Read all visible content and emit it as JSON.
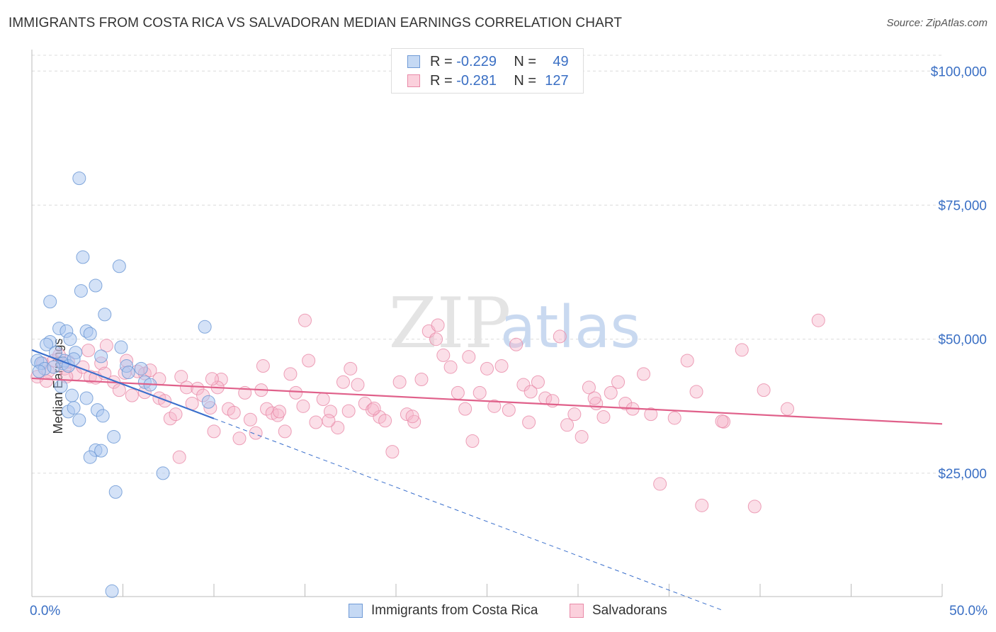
{
  "header": {
    "title": "IMMIGRANTS FROM COSTA RICA VS SALVADORAN MEDIAN EARNINGS CORRELATION CHART",
    "source": "Source: ZipAtlas.com"
  },
  "watermark": {
    "zip": "ZIP",
    "atlas": "atlas"
  },
  "colors": {
    "blue_fill": "#a9c6ef",
    "blue_stroke": "#6f9ad6",
    "blue_line": "#3a6fcc",
    "pink_fill": "#f6b8cb",
    "pink_stroke": "#e98aa8",
    "pink_line": "#e0608a",
    "axis_text": "#3a6fc4"
  },
  "legend": {
    "rows": [
      {
        "r_label": "R =",
        "r_value": "-0.229",
        "n_label": "N =",
        "n_value": "49"
      },
      {
        "r_label": "R =",
        "r_value": "-0.281",
        "n_label": "N =",
        "n_value": "127"
      }
    ]
  },
  "bottom_legend": {
    "series1": "Immigrants from Costa Rica",
    "series2": "Salvadorans"
  },
  "chart_data": {
    "type": "scatter",
    "title": "IMMIGRANTS FROM COSTA RICA VS SALVADORAN MEDIAN EARNINGS CORRELATION CHART",
    "xlabel": "",
    "ylabel": "Median Earnings",
    "xlim": [
      0,
      50
    ],
    "ylim": [
      2000,
      104000
    ],
    "x_tick_labels": [
      "0.0%",
      "50.0%"
    ],
    "y_ticks": [
      25000,
      50000,
      75000,
      100000
    ],
    "y_tick_labels": [
      "$25,000",
      "$50,000",
      "$75,000",
      "$100,000"
    ],
    "grid": true,
    "series": [
      {
        "name": "Immigrants from Costa Rica",
        "r": -0.229,
        "n": 49,
        "trend": {
          "x0": 0.0,
          "y0": 48000,
          "x1": 10.0,
          "y1": 35200,
          "dashed_to_x": 38.0
        },
        "points": [
          [
            0.3,
            46000
          ],
          [
            0.5,
            45500
          ],
          [
            0.7,
            44500
          ],
          [
            0.4,
            44000
          ],
          [
            1.0,
            49500
          ],
          [
            0.8,
            49000
          ],
          [
            1.3,
            47500
          ],
          [
            1.8,
            46000
          ],
          [
            2.4,
            47500
          ],
          [
            1.7,
            45500
          ],
          [
            2.0,
            45000
          ],
          [
            1.2,
            44800
          ],
          [
            1.5,
            52000
          ],
          [
            1.9,
            51500
          ],
          [
            2.1,
            50000
          ],
          [
            2.3,
            46300
          ],
          [
            3.0,
            51500
          ],
          [
            3.2,
            51000
          ],
          [
            2.7,
            59000
          ],
          [
            1.0,
            57000
          ],
          [
            3.5,
            60000
          ],
          [
            2.8,
            65300
          ],
          [
            4.8,
            63600
          ],
          [
            2.6,
            80000
          ],
          [
            4.0,
            54600
          ],
          [
            4.9,
            48500
          ],
          [
            5.2,
            45000
          ],
          [
            5.3,
            43800
          ],
          [
            3.8,
            46800
          ],
          [
            1.6,
            41200
          ],
          [
            2.2,
            39500
          ],
          [
            3.0,
            39000
          ],
          [
            2.0,
            36500
          ],
          [
            2.3,
            37200
          ],
          [
            3.6,
            36800
          ],
          [
            3.9,
            35700
          ],
          [
            2.6,
            34900
          ],
          [
            4.5,
            31800
          ],
          [
            3.5,
            29300
          ],
          [
            3.8,
            29200
          ],
          [
            3.2,
            28000
          ],
          [
            7.2,
            25000
          ],
          [
            4.6,
            21500
          ],
          [
            6.0,
            44500
          ],
          [
            6.2,
            42000
          ],
          [
            9.5,
            52300
          ],
          [
            9.7,
            38300
          ],
          [
            6.5,
            41500
          ],
          [
            4.4,
            3000
          ]
        ]
      },
      {
        "name": "Salvadorans",
        "r": -0.281,
        "n": 127,
        "trend": {
          "x0": 0.0,
          "y0": 42700,
          "x1": 50.0,
          "y1": 34200
        },
        "points": [
          [
            0.3,
            43000
          ],
          [
            0.6,
            45500
          ],
          [
            0.9,
            44000
          ],
          [
            1.2,
            46000
          ],
          [
            1.5,
            47000
          ],
          [
            1.8,
            44500
          ],
          [
            2.0,
            45800
          ],
          [
            2.4,
            43500
          ],
          [
            2.8,
            44800
          ],
          [
            3.2,
            43000
          ],
          [
            3.5,
            42800
          ],
          [
            3.8,
            45500
          ],
          [
            4.0,
            43600
          ],
          [
            4.5,
            42000
          ],
          [
            4.8,
            40500
          ],
          [
            5.2,
            46000
          ],
          [
            5.5,
            39500
          ],
          [
            5.8,
            44000
          ],
          [
            6.2,
            43600
          ],
          [
            6.5,
            44200
          ],
          [
            7.0,
            39000
          ],
          [
            7.3,
            38500
          ],
          [
            7.6,
            35200
          ],
          [
            7.9,
            36000
          ],
          [
            8.2,
            43000
          ],
          [
            8.5,
            41000
          ],
          [
            8.8,
            38000
          ],
          [
            9.1,
            40800
          ],
          [
            9.4,
            39500
          ],
          [
            9.8,
            37200
          ],
          [
            10.0,
            32800
          ],
          [
            10.4,
            42500
          ],
          [
            10.8,
            37000
          ],
          [
            11.1,
            36300
          ],
          [
            11.4,
            31500
          ],
          [
            11.7,
            40000
          ],
          [
            12.0,
            35000
          ],
          [
            12.3,
            32500
          ],
          [
            12.6,
            40500
          ],
          [
            12.9,
            37000
          ],
          [
            13.2,
            36200
          ],
          [
            13.5,
            35800
          ],
          [
            13.9,
            32800
          ],
          [
            14.2,
            43500
          ],
          [
            14.5,
            40000
          ],
          [
            14.9,
            37500
          ],
          [
            15.2,
            46000
          ],
          [
            15.6,
            34500
          ],
          [
            16.0,
            38800
          ],
          [
            16.4,
            36500
          ],
          [
            16.8,
            33500
          ],
          [
            17.1,
            42000
          ],
          [
            17.5,
            44500
          ],
          [
            17.9,
            41500
          ],
          [
            18.3,
            38000
          ],
          [
            18.7,
            36800
          ],
          [
            19.1,
            35500
          ],
          [
            19.4,
            34800
          ],
          [
            19.8,
            29000
          ],
          [
            20.2,
            42000
          ],
          [
            20.6,
            36000
          ],
          [
            21.0,
            34600
          ],
          [
            21.4,
            42500
          ],
          [
            21.8,
            51500
          ],
          [
            22.2,
            50000
          ],
          [
            22.6,
            47000
          ],
          [
            23.0,
            44800
          ],
          [
            23.4,
            40000
          ],
          [
            23.8,
            37000
          ],
          [
            24.2,
            31000
          ],
          [
            24.6,
            40000
          ],
          [
            25.0,
            44500
          ],
          [
            25.4,
            37500
          ],
          [
            25.8,
            45000
          ],
          [
            26.2,
            36800
          ],
          [
            26.6,
            49000
          ],
          [
            27.0,
            41500
          ],
          [
            27.4,
            40200
          ],
          [
            27.8,
            42000
          ],
          [
            28.2,
            39000
          ],
          [
            28.6,
            38500
          ],
          [
            29.0,
            50500
          ],
          [
            29.4,
            34000
          ],
          [
            29.8,
            36000
          ],
          [
            30.2,
            31800
          ],
          [
            30.6,
            41000
          ],
          [
            31.0,
            38000
          ],
          [
            31.4,
            35500
          ],
          [
            31.8,
            40000
          ],
          [
            32.2,
            42000
          ],
          [
            32.6,
            38000
          ],
          [
            33.0,
            37000
          ],
          [
            34.0,
            36000
          ],
          [
            35.3,
            35300
          ],
          [
            36.5,
            40200
          ],
          [
            38.0,
            34600
          ],
          [
            39.0,
            48000
          ],
          [
            40.2,
            40500
          ],
          [
            41.5,
            37000
          ],
          [
            33.6,
            43500
          ],
          [
            34.5,
            23000
          ],
          [
            36.8,
            19000
          ],
          [
            39.7,
            18800
          ],
          [
            37.9,
            34700
          ],
          [
            43.2,
            53500
          ],
          [
            7.0,
            42600
          ],
          [
            15.0,
            53500
          ],
          [
            22.3,
            52600
          ],
          [
            10.2,
            41000
          ],
          [
            12.7,
            45000
          ],
          [
            5.1,
            43700
          ],
          [
            9.9,
            42600
          ],
          [
            13.6,
            36500
          ],
          [
            16.3,
            34800
          ],
          [
            18.8,
            37100
          ],
          [
            6.2,
            40100
          ],
          [
            3.1,
            47900
          ],
          [
            8.1,
            28000
          ],
          [
            4.1,
            48800
          ],
          [
            20.9,
            35600
          ],
          [
            0.8,
            42200
          ],
          [
            1.9,
            43000
          ],
          [
            27.3,
            34500
          ],
          [
            24.0,
            46700
          ],
          [
            30.9,
            39000
          ],
          [
            36.0,
            46000
          ],
          [
            17.4,
            36600
          ]
        ]
      }
    ]
  }
}
